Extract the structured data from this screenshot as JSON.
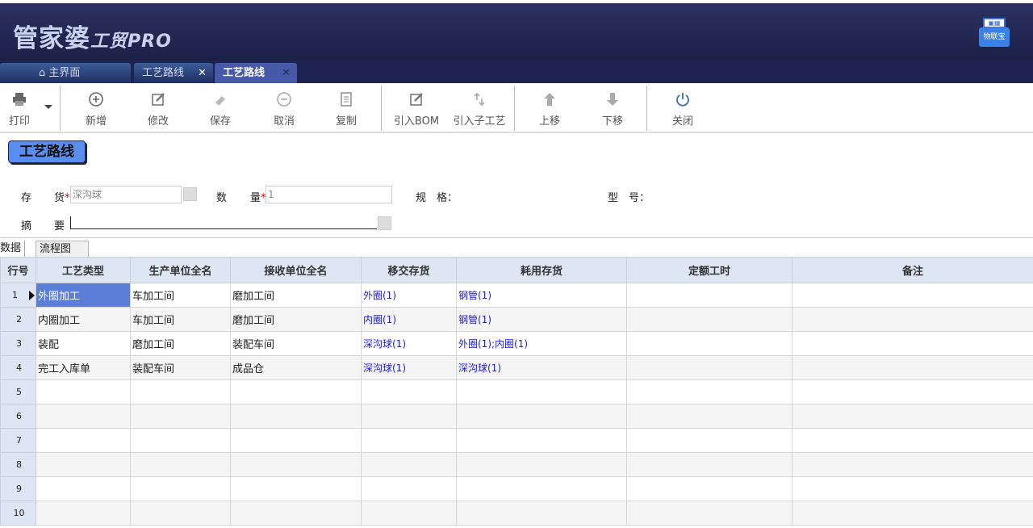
{
  "app": {
    "logo": "管家婆",
    "logo_sub": "工贸PRO",
    "iot_label": "物联宝"
  },
  "tabs": [
    {
      "label": "主界面",
      "icon": "home-icon"
    },
    {
      "label": "工艺路线"
    },
    {
      "label": "工艺路线",
      "active": true
    }
  ],
  "toolbar": [
    {
      "label": "打印",
      "icon": "printer-icon"
    },
    {
      "label": "新增",
      "icon": "plus-circle-icon"
    },
    {
      "label": "修改",
      "icon": "edit-icon"
    },
    {
      "label": "保存",
      "icon": "eraser-icon"
    },
    {
      "label": "取消",
      "icon": "minus-circle-icon"
    },
    {
      "label": "复制",
      "icon": "copy-icon"
    },
    {
      "label": "引入BOM",
      "icon": "edit-icon"
    },
    {
      "label": "引入子工艺",
      "icon": "sort-arrows-icon"
    },
    {
      "label": "上移",
      "icon": "arrow-up-icon"
    },
    {
      "label": "下移",
      "icon": "arrow-down-icon"
    },
    {
      "label": "关闭",
      "icon": "power-icon"
    }
  ],
  "form": {
    "title": "工艺路线",
    "stock_label_a": "存",
    "stock_label_b": "货",
    "stock_value": "深沟球",
    "qty_label_a": "数",
    "qty_label_b": "量",
    "qty_value": "1",
    "spec_label": "规　格：",
    "model_label": "型　号：",
    "memo_label_a": "摘",
    "memo_label_b": "要",
    "required_mark": "*"
  },
  "subtabs": [
    "数据",
    "流程图"
  ],
  "grid": {
    "columns": [
      "行号",
      "工艺类型",
      "生产单位全名",
      "接收单位全名",
      "移交存货",
      "耗用存货",
      "定额工时",
      "备注"
    ],
    "rows": [
      [
        "1",
        "外圈加工",
        "车加工间",
        "磨加工间",
        "外圈(1)",
        "钢管(1)",
        "",
        ""
      ],
      [
        "2",
        "内圈加工",
        "车加工间",
        "磨加工间",
        "内圈(1)",
        "钢管(1)",
        "",
        ""
      ],
      [
        "3",
        "装配",
        "磨加工间",
        "装配车间",
        "深沟球(1)",
        "外圈(1);内圈(1)",
        "",
        ""
      ],
      [
        "4",
        "完工入库单",
        "装配车间",
        "成品仓",
        "深沟球(1)",
        "深沟球(1)",
        "",
        ""
      ],
      [
        "5",
        "",
        "",
        "",
        "",
        "",
        "",
        ""
      ],
      [
        "6",
        "",
        "",
        "",
        "",
        "",
        "",
        ""
      ],
      [
        "7",
        "",
        "",
        "",
        "",
        "",
        "",
        ""
      ],
      [
        "8",
        "",
        "",
        "",
        "",
        "",
        "",
        ""
      ],
      [
        "9",
        "",
        "",
        "",
        "",
        "",
        "",
        ""
      ],
      [
        "10",
        "",
        "",
        "",
        "",
        "",
        "",
        ""
      ]
    ]
  },
  "colors": {
    "header": "#1b2048",
    "selected_cell": "#5b7fd9",
    "link": "#1a1aee",
    "badge": "#5a8df0"
  }
}
